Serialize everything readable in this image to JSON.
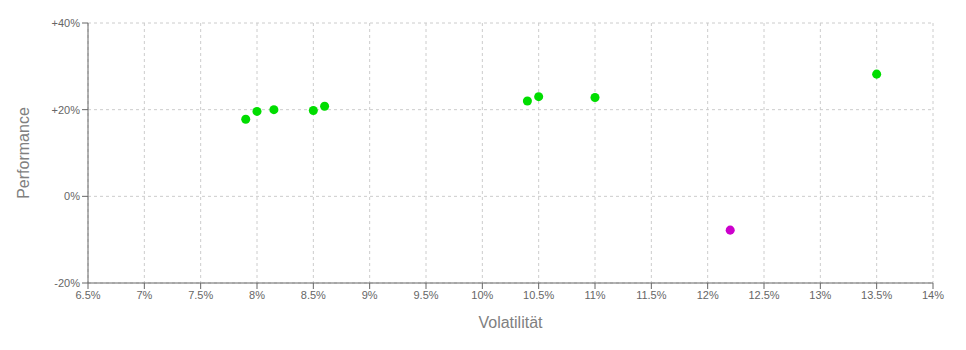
{
  "chart_data": {
    "type": "scatter",
    "xlabel": "Volatilität",
    "ylabel": "Performance",
    "xlim": [
      0.065,
      0.14
    ],
    "ylim": [
      -0.2,
      0.4
    ],
    "xticks": [
      {
        "value": 0.065,
        "label": "6.5%"
      },
      {
        "value": 0.07,
        "label": "7%"
      },
      {
        "value": 0.075,
        "label": "7.5%"
      },
      {
        "value": 0.08,
        "label": "8%"
      },
      {
        "value": 0.085,
        "label": "8.5%"
      },
      {
        "value": 0.09,
        "label": "9%"
      },
      {
        "value": 0.095,
        "label": "9.5%"
      },
      {
        "value": 0.1,
        "label": "10%"
      },
      {
        "value": 0.105,
        "label": "10.5%"
      },
      {
        "value": 0.11,
        "label": "11%"
      },
      {
        "value": 0.115,
        "label": "11.5%"
      },
      {
        "value": 0.12,
        "label": "12%"
      },
      {
        "value": 0.125,
        "label": "12.5%"
      },
      {
        "value": 0.13,
        "label": "13%"
      },
      {
        "value": 0.135,
        "label": "13.5%"
      },
      {
        "value": 0.14,
        "label": "14%"
      }
    ],
    "yticks": [
      {
        "value": -0.2,
        "label": "-20%"
      },
      {
        "value": 0.0,
        "label": "0%"
      },
      {
        "value": 0.2,
        "label": "+20%"
      },
      {
        "value": 0.4,
        "label": "+40%"
      }
    ],
    "grid": true,
    "series": [
      {
        "color": "#00dd00",
        "x": [
          0.079,
          0.08,
          0.0815,
          0.085,
          0.086,
          0.104,
          0.105,
          0.11,
          0.135
        ],
        "values": [
          0.178,
          0.196,
          0.2,
          0.198,
          0.208,
          0.22,
          0.23,
          0.228,
          0.282
        ]
      },
      {
        "color": "#cc00cc",
        "x": [
          0.122
        ],
        "values": [
          -0.078
        ]
      }
    ]
  }
}
